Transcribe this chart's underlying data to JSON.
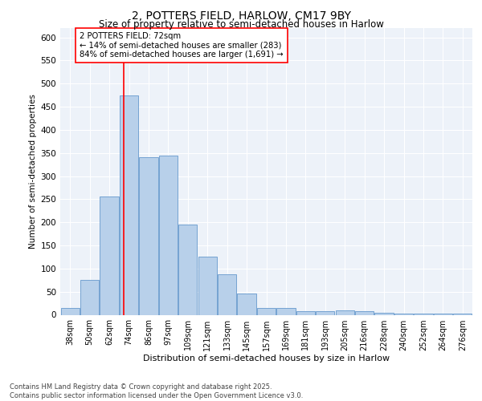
{
  "title1": "2, POTTERS FIELD, HARLOW, CM17 9BY",
  "title2": "Size of property relative to semi-detached houses in Harlow",
  "xlabel": "Distribution of semi-detached houses by size in Harlow",
  "ylabel": "Number of semi-detached properties",
  "categories": [
    "38sqm",
    "50sqm",
    "62sqm",
    "74sqm",
    "86sqm",
    "97sqm",
    "109sqm",
    "121sqm",
    "133sqm",
    "145sqm",
    "157sqm",
    "169sqm",
    "181sqm",
    "193sqm",
    "205sqm",
    "216sqm",
    "228sqm",
    "240sqm",
    "252sqm",
    "264sqm",
    "276sqm"
  ],
  "bar_values": [
    15,
    75,
    255,
    475,
    340,
    345,
    195,
    125,
    87,
    46,
    15,
    15,
    7,
    7,
    10,
    7,
    5,
    3,
    2,
    2,
    3
  ],
  "bar_color": "#b8d0ea",
  "bar_edge_color": "#6699cc",
  "reference_line_x": 2.72,
  "reference_line_color": "red",
  "annotation_text": "2 POTTERS FIELD: 72sqm\n← 14% of semi-detached houses are smaller (283)\n84% of semi-detached houses are larger (1,691) →",
  "annotation_box_color": "white",
  "annotation_box_edge_color": "red",
  "footer": "Contains HM Land Registry data © Crown copyright and database right 2025.\nContains public sector information licensed under the Open Government Licence v3.0.",
  "background_color": "#edf2f9",
  "ylim": [
    0,
    620
  ],
  "yticks": [
    0,
    50,
    100,
    150,
    200,
    250,
    300,
    350,
    400,
    450,
    500,
    550,
    600
  ]
}
